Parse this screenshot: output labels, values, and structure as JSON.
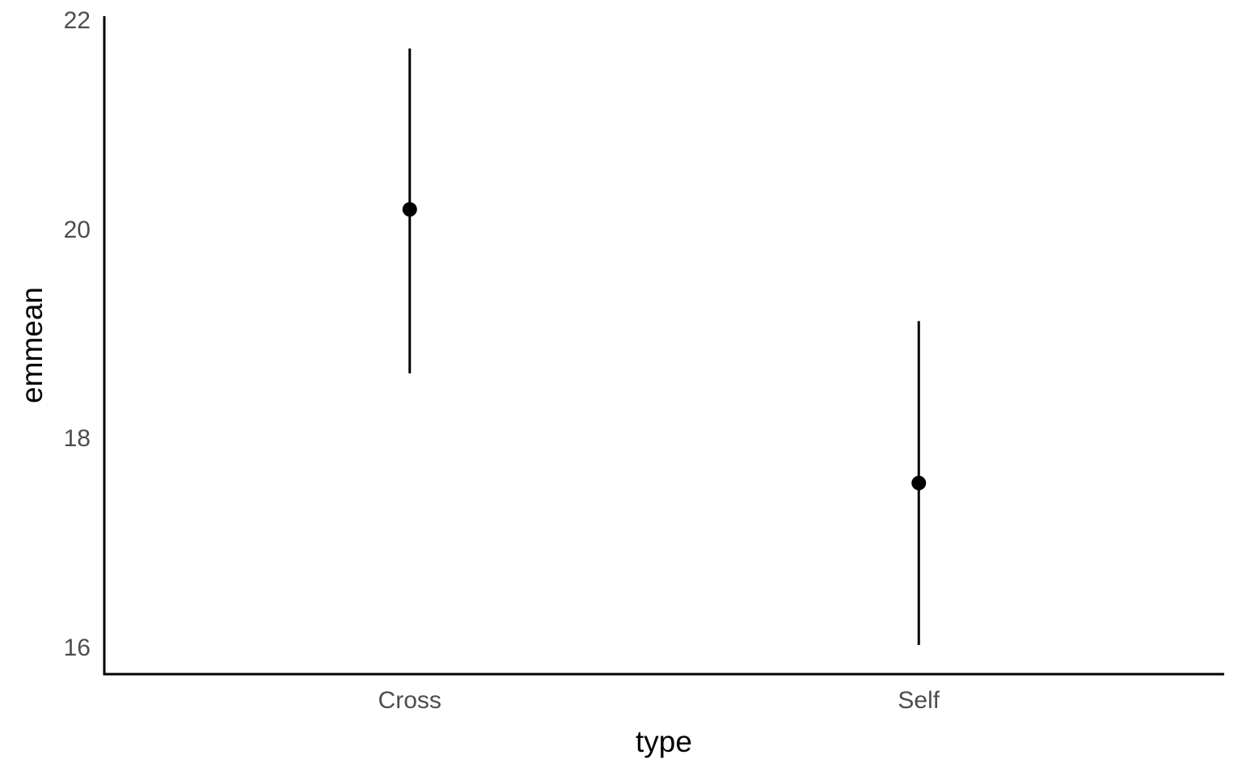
{
  "chart_data": {
    "type": "scatter",
    "variant": "point-estimate-with-error-bars",
    "title": "",
    "xlabel": "type",
    "ylabel": "emmean",
    "categories": [
      "Cross",
      "Self"
    ],
    "series": [
      {
        "name": "emmean",
        "points": [
          {
            "category": "Cross",
            "emmean": 20.2,
            "ci_lower": 18.63,
            "ci_upper": 21.74
          },
          {
            "category": "Self",
            "emmean": 17.58,
            "ci_lower": 16.03,
            "ci_upper": 19.13
          }
        ]
      }
    ],
    "y_ticks": [
      16,
      18,
      20,
      22
    ],
    "ylim": [
      15.75,
      22.05
    ],
    "grid": false,
    "legend": false,
    "axis_ticks_visible": false,
    "colors": {
      "point": "#000000",
      "error_bar": "#000000",
      "axis_line": "#000000",
      "tick_label": "#4d4d4d",
      "axis_title": "#000000",
      "background": "#ffffff"
    }
  }
}
